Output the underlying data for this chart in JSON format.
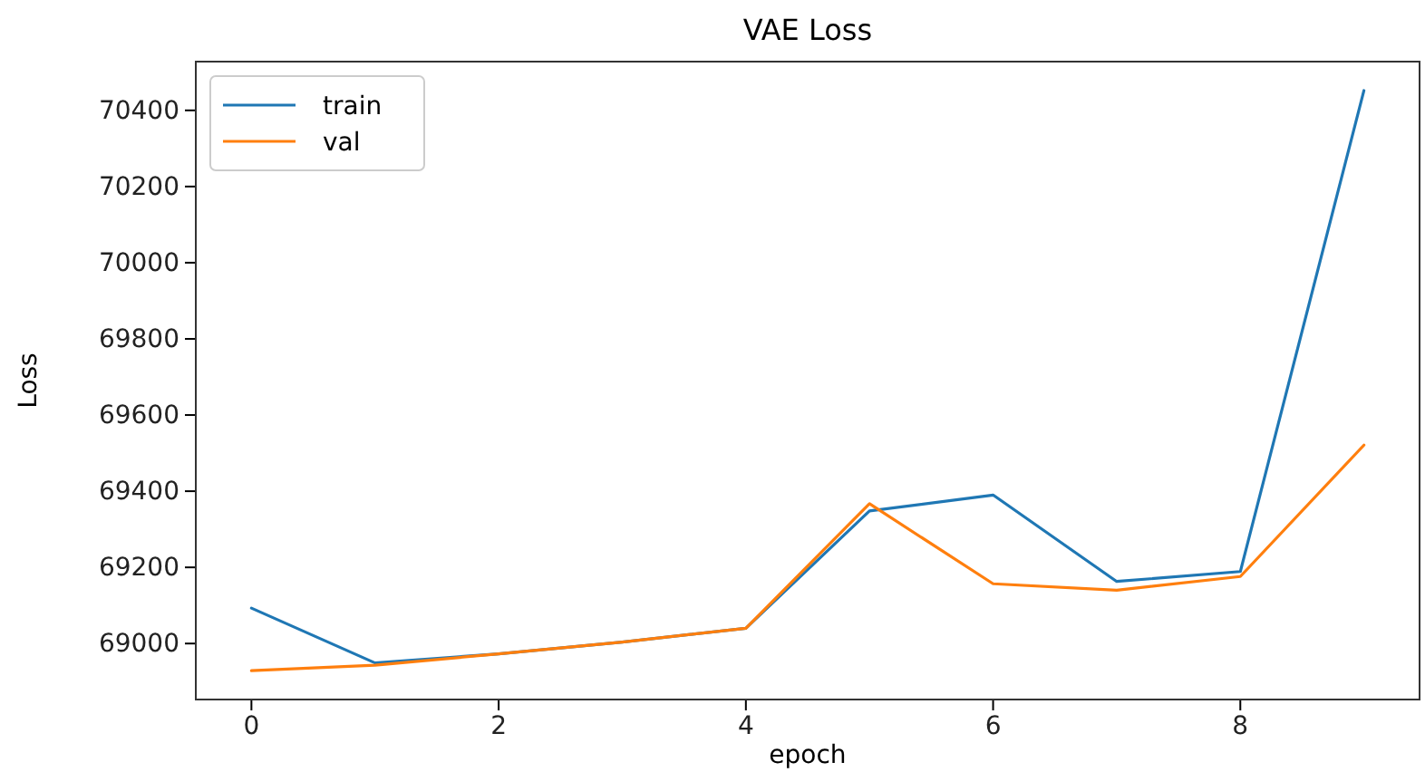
{
  "chart_data": {
    "type": "line",
    "title": "VAE Loss",
    "xlabel": "epoch",
    "ylabel": "Loss",
    "x": [
      0,
      1,
      2,
      3,
      4,
      5,
      6,
      7,
      8,
      9
    ],
    "series": [
      {
        "name": "train",
        "color": "#1f77b4",
        "values": [
          69093,
          68949,
          68973,
          69004,
          69040,
          69348,
          69390,
          69163,
          69189,
          70452
        ]
      },
      {
        "name": "val",
        "color": "#ff7f0e",
        "values": [
          68929,
          68943,
          68973,
          69004,
          69040,
          69367,
          69157,
          69140,
          69176,
          69521
        ]
      }
    ],
    "xlim": [
      -0.45,
      9.45
    ],
    "xticks": [
      0,
      2,
      4,
      6,
      8
    ],
    "ylim": [
      68853,
      70528
    ],
    "yticks": [
      69000,
      69200,
      69400,
      69600,
      69800,
      70000,
      70200,
      70400
    ],
    "legend": "top left",
    "grid": false,
    "line_style": "solid",
    "marker": "none"
  }
}
